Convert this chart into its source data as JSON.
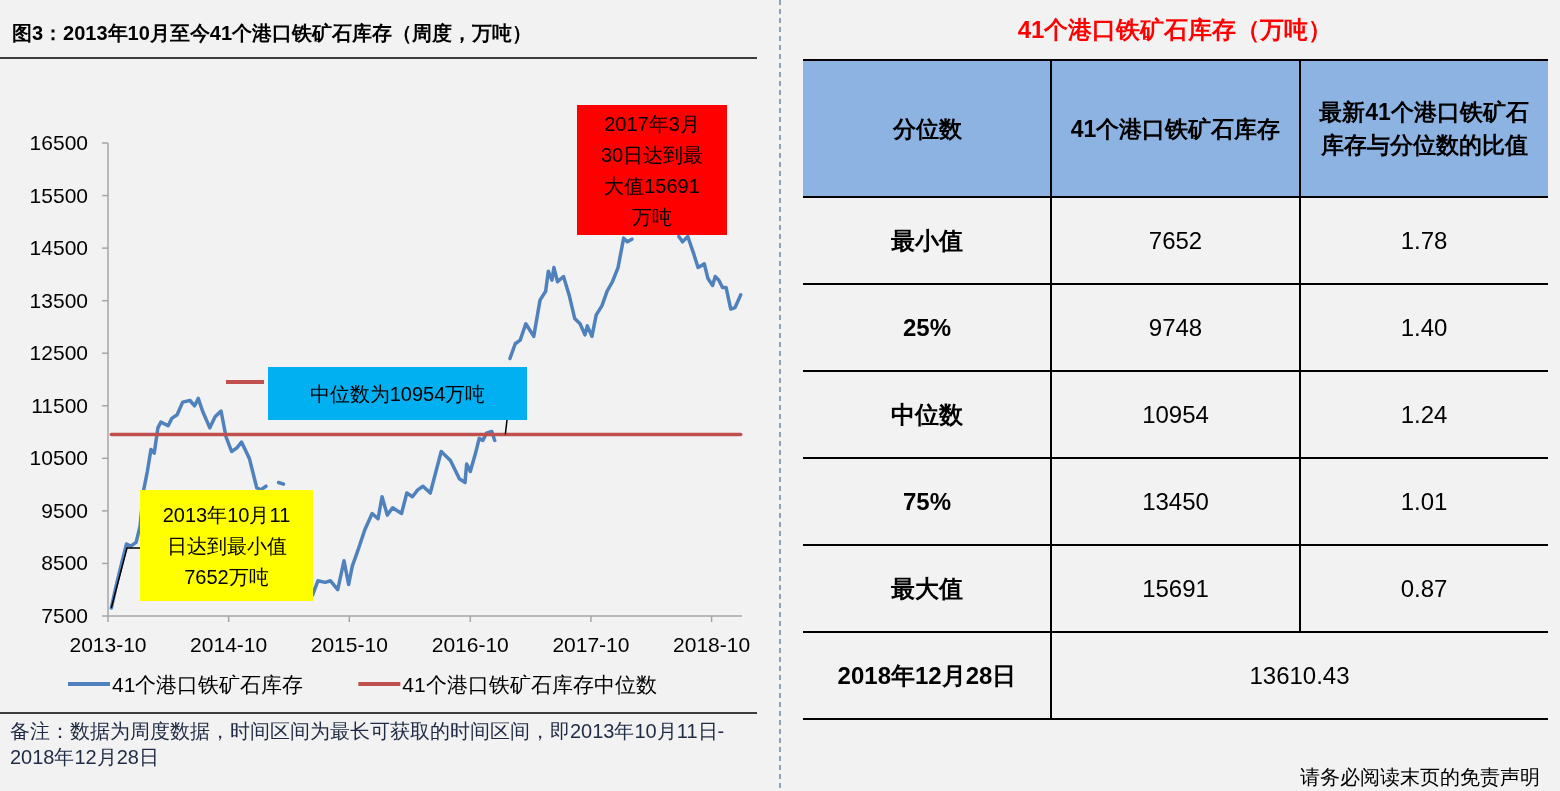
{
  "chart_data": [
    {
      "type": "line",
      "title": "图3：2013年10月至今41个港口铁矿石库存（周度，万吨）",
      "xlim": [
        "2013-10-01",
        "2019-01-01"
      ],
      "xticks": [
        {
          "value": "2013-10-01",
          "label": "2013-10"
        },
        {
          "value": "2014-10-01",
          "label": "2014-10"
        },
        {
          "value": "2015-10-01",
          "label": "2015-10"
        },
        {
          "value": "2016-10-01",
          "label": "2016-10"
        },
        {
          "value": "2017-10-01",
          "label": "2017-10"
        },
        {
          "value": "2018-10-01",
          "label": "2018-10"
        }
      ],
      "ylim": [
        7500,
        16500
      ],
      "yticks": [
        7500,
        8500,
        9500,
        10500,
        11500,
        12500,
        13500,
        14500,
        15500,
        16500
      ],
      "legend": "bottom",
      "series": [
        {
          "name": "41个港口铁矿石库存",
          "color": "#4f81bd",
          "x": [
            "2013-10-11",
            "2013-10-24",
            "2013-11-12",
            "2013-11-26",
            "2013-12-09",
            "2013-12-25",
            "2014-01-06",
            "2014-01-17",
            "2014-01-28",
            "2014-02-08",
            "2014-02-18",
            "2014-03-01",
            "2014-03-10",
            "2014-04-01",
            "2014-04-12",
            "2014-04-28",
            "2014-05-15",
            "2014-06-06",
            "2014-06-20",
            "2014-07-01",
            "2014-07-14",
            "2014-08-05",
            "2014-08-21",
            "2014-09-08",
            "2014-09-23",
            "2014-10-10",
            "2014-10-26",
            "2014-11-09",
            "2014-12-03",
            "2014-12-25",
            "2015-01-06",
            "2015-01-22",
            "2015-02-08",
            "2015-03-01",
            "2015-03-16",
            "2015-05-15",
            "2015-06-12",
            "2015-06-28",
            "2015-07-20",
            "2015-08-05",
            "2015-08-27",
            "2015-09-15",
            "2015-09-29",
            "2015-10-10",
            "2015-10-26",
            "2015-11-17",
            "2015-12-09",
            "2015-12-27",
            "2016-01-08",
            "2016-01-24",
            "2016-02-09",
            "2016-03-07",
            "2016-03-23",
            "2016-04-09",
            "2016-04-25",
            "2016-05-11",
            "2016-06-02",
            "2016-07-05",
            "2016-08-02",
            "2016-08-29",
            "2016-09-15",
            "2016-09-20",
            "2016-10-01",
            "2016-10-17",
            "2016-10-28",
            "2016-11-08",
            "2016-11-19",
            "2016-12-05",
            "2016-12-14",
            "2016-12-27",
            "2017-01-13",
            "2017-01-29",
            "2017-02-14",
            "2017-03-01",
            "2017-03-18",
            "2017-04-11",
            "2017-04-30",
            "2017-05-17",
            "2017-05-25",
            "2017-06-05",
            "2017-06-11",
            "2017-06-22",
            "2017-07-10",
            "2017-07-27",
            "2017-08-13",
            "2017-08-29",
            "2017-09-13",
            "2017-09-20",
            "2017-10-04",
            "2017-10-17",
            "2017-11-03",
            "2017-11-19",
            "2017-12-05",
            "2017-12-22",
            "2018-01-08",
            "2018-01-19",
            "2018-02-02",
            "2018-04-15",
            "2018-06-24",
            "2018-07-05",
            "2018-07-21",
            "2018-08-07",
            "2018-08-21",
            "2018-09-09",
            "2018-09-20",
            "2018-10-04",
            "2018-10-12",
            "2018-10-23",
            "2018-11-03",
            "2018-11-14",
            "2018-11-28",
            "2018-12-11",
            "2018-12-28"
          ],
          "values": [
            7652,
            8030,
            8520,
            8870,
            8830,
            8900,
            9210,
            9900,
            10250,
            10670,
            10600,
            11080,
            11190,
            11120,
            11260,
            11330,
            11570,
            11600,
            11500,
            11640,
            11400,
            11080,
            11290,
            11400,
            10910,
            10630,
            10700,
            10810,
            10490,
            9940,
            9900,
            9970,
            null,
            10040,
            10010,
            null,
            7900,
            8170,
            8140,
            8170,
            8000,
            8550,
            8100,
            8450,
            8730,
            9140,
            9450,
            9350,
            9770,
            9420,
            9560,
            9450,
            9840,
            9770,
            9900,
            9970,
            9840,
            10630,
            10460,
            10110,
            10040,
            10390,
            10250,
            10600,
            10880,
            10840,
            10980,
            11010,
            10840,
            null,
            null,
            12400,
            12680,
            12750,
            13060,
            12820,
            13510,
            13680,
            14060,
            13890,
            14130,
            13860,
            13960,
            13610,
            13160,
            13060,
            12850,
            13020,
            12820,
            13230,
            13400,
            13680,
            13860,
            14130,
            14690,
            14620,
            14670,
            null,
            14720,
            14620,
            14720,
            14410,
            14130,
            14200,
            13920,
            13790,
            13960,
            13890,
            13750,
            13750,
            13340,
            13370,
            13610
          ]
        },
        {
          "name": "41个港口铁矿石库存中位数",
          "color": "#c0504d",
          "x": [
            "2013-10-11",
            "2018-12-28"
          ],
          "values": [
            10954,
            10954
          ]
        }
      ],
      "annotations": [
        {
          "text": "2013年10月11日达到最小值7652万吨",
          "x": "2013-10-11",
          "y": 7652
        },
        {
          "text": "中位数为10954万吨",
          "x": "2017-01-15",
          "y": 10954
        },
        "2017年3月30日达到最大值15691万吨",
        "备注：数据为周度数据，时间区间为最长可获取的时间区间，即2013年10月11日-2018年12月28日"
      ]
    },
    {
      "type": "other",
      "title": "41个港口铁矿石库存（万吨）",
      "categories": [
        "分位数",
        "41个港口铁矿石库存",
        "最新41个港口铁矿石库存与分位数的比值"
      ],
      "y_categories": [
        "最小值",
        "25%",
        "中位数",
        "75%",
        "最大值",
        "2018年12月28日"
      ],
      "cell_labels": [
        [
          "7652",
          "1.78"
        ],
        [
          "9748",
          "1.40"
        ],
        [
          "10954",
          "1.24"
        ],
        [
          "13450",
          "1.01"
        ],
        [
          "15691",
          "0.87"
        ],
        [
          "13610.43",
          null
        ]
      ],
      "annotations": [
        "请务必阅读末页的免责声明"
      ]
    }
  ]
}
